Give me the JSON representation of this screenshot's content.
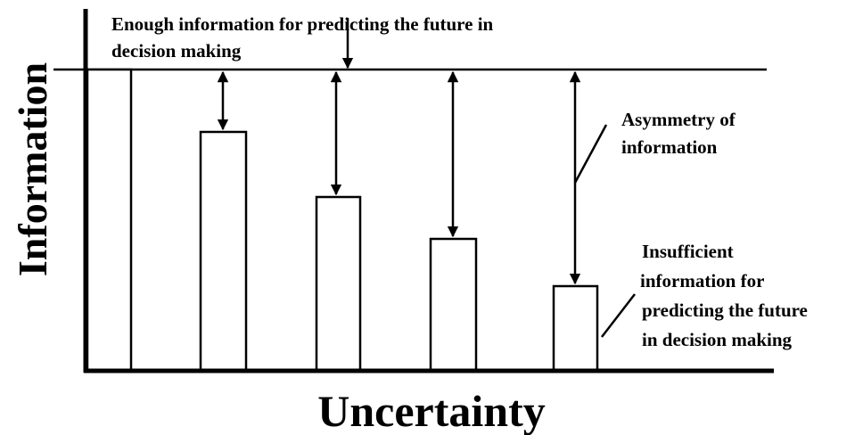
{
  "axes": {
    "y_label": "Information",
    "x_label": "Uncertainty"
  },
  "annotations": {
    "enough": [
      "Enough information for predicting the future in",
      "decision making"
    ],
    "asymmetry": [
      "Asymmetry of",
      "information"
    ],
    "insufficient": [
      "Insufficient",
      "information for",
      "predicting the future",
      "in decision making"
    ]
  }
}
